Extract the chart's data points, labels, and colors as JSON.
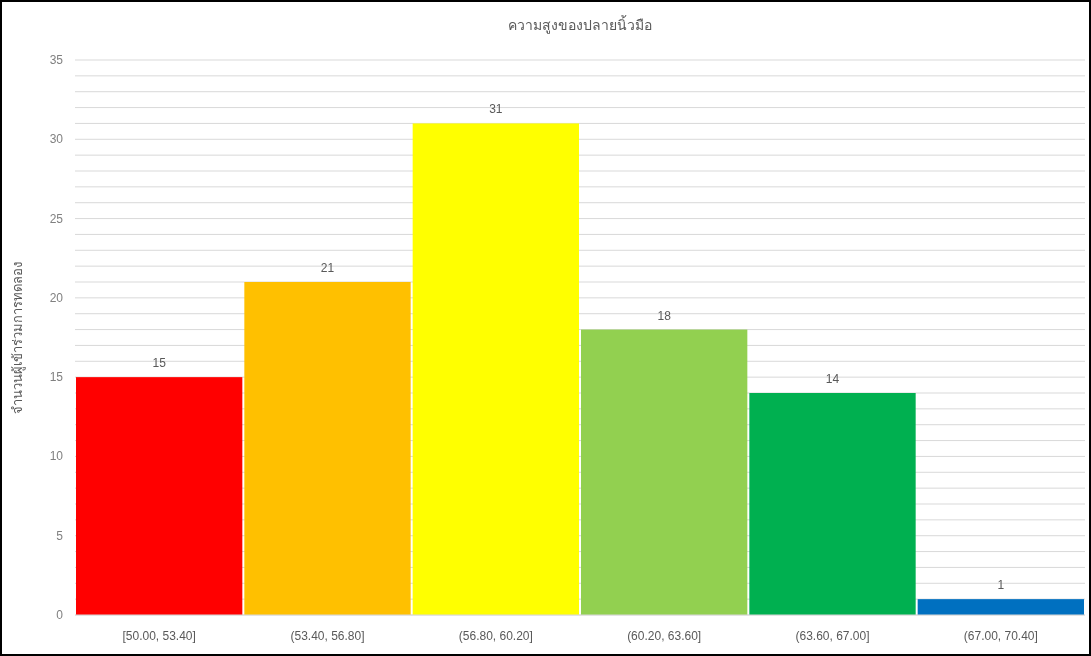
{
  "chart_data": {
    "type": "bar",
    "title": "ความสูงของปลายนิ้วมือ",
    "ylabel": "จำนวนผู้เข้าร่วมการทดลอง",
    "categories": [
      "[50.00, 53.40]",
      "(53.40, 56.80]",
      "(56.80, 60.20]",
      "(60.20, 63.60]",
      "(63.60, 67.00]",
      "(67.00, 70.40]"
    ],
    "values": [
      15,
      21,
      31,
      18,
      14,
      1
    ],
    "colors": [
      "#ff0000",
      "#ffc000",
      "#ffff00",
      "#92d050",
      "#00b050",
      "#0070c0"
    ],
    "ylim": [
      0,
      35
    ],
    "yticks": [
      0,
      {
        "value": 1,
        "label": null
      },
      {
        "value": 2,
        "label": null
      },
      {
        "value": 3,
        "label": null
      },
      {
        "value": 4,
        "label": null
      },
      5,
      {
        "value": 6,
        "label": null
      },
      {
        "value": 7,
        "label": null
      },
      {
        "value": 8,
        "label": null
      },
      {
        "value": 9,
        "label": null
      },
      10,
      {
        "value": 11,
        "label": null
      },
      {
        "value": 12,
        "label": null
      },
      {
        "value": 13,
        "label": null
      },
      {
        "value": 14,
        "label": null
      },
      15,
      {
        "value": 16,
        "label": null
      },
      {
        "value": 17,
        "label": null
      },
      {
        "value": 18,
        "label": null
      },
      {
        "value": 19,
        "label": null
      },
      20,
      {
        "value": 21,
        "label": null
      },
      {
        "value": 22,
        "label": null
      },
      {
        "value": 23,
        "label": null
      },
      {
        "value": 24,
        "label": null
      },
      25,
      {
        "value": 26,
        "label": null
      },
      {
        "value": 27,
        "label": null
      },
      {
        "value": 28,
        "label": null
      },
      {
        "value": 29,
        "label": null
      },
      30,
      {
        "value": 31,
        "label": null
      },
      {
        "value": 32,
        "label": null
      },
      {
        "value": 33,
        "label": null
      },
      {
        "value": 34,
        "label": null
      },
      35
    ],
    "grid": "y",
    "data_labels": true
  }
}
